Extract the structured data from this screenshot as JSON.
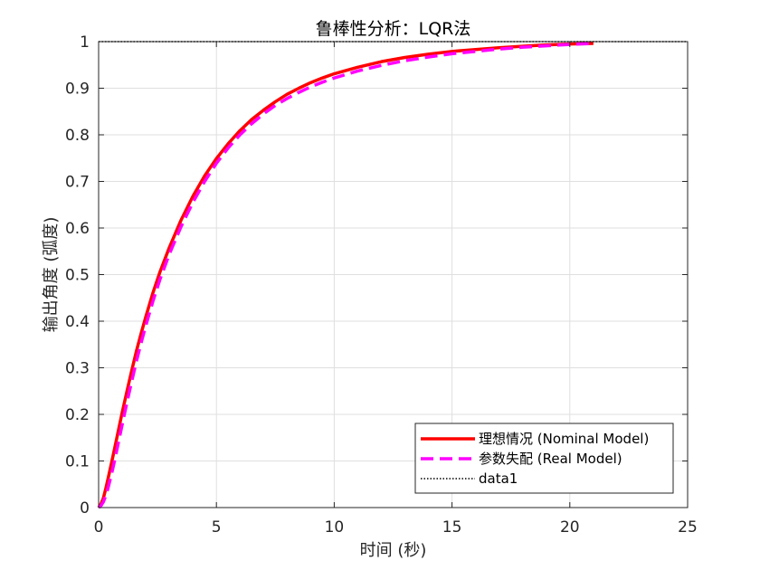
{
  "chart_data": {
    "type": "line",
    "title": "鲁棒性分析：LQR法",
    "xlabel": "时间 (秒)",
    "ylabel": "输出角度 (弧度)",
    "xlim": [
      0,
      25
    ],
    "ylim": [
      0,
      1
    ],
    "xticks": [
      0,
      5,
      10,
      15,
      20,
      25
    ],
    "yticks": [
      0,
      0.1,
      0.2,
      0.3,
      0.4,
      0.5,
      0.6,
      0.7,
      0.8,
      0.9,
      1
    ],
    "xtick_labels": [
      "0",
      "5",
      "10",
      "15",
      "20",
      "25"
    ],
    "ytick_labels": [
      "0",
      "0.1",
      "0.2",
      "0.3",
      "0.4",
      "0.5",
      "0.6",
      "0.7",
      "0.8",
      "0.9",
      "1"
    ],
    "grid": true,
    "legend_position": "bottom-right",
    "series": [
      {
        "name": "理想情况 (Nominal Model)",
        "color": "#ff0000",
        "style": "solid",
        "x": [
          0,
          0.1,
          0.2,
          0.3,
          0.4,
          0.5,
          0.6,
          0.7,
          0.8,
          1,
          1.2,
          1.4,
          1.6,
          1.8,
          2,
          2.3,
          2.6,
          3,
          3.5,
          4,
          4.5,
          5,
          5.5,
          6,
          6.5,
          7,
          7.5,
          8,
          8.5,
          9,
          9.5,
          10,
          11,
          12,
          13,
          14,
          15,
          16,
          17,
          18,
          19,
          20,
          21
        ],
        "y": [
          0,
          0.008,
          0.02,
          0.04,
          0.062,
          0.085,
          0.108,
          0.132,
          0.156,
          0.204,
          0.249,
          0.293,
          0.335,
          0.373,
          0.409,
          0.46,
          0.505,
          0.558,
          0.617,
          0.668,
          0.712,
          0.749,
          0.781,
          0.809,
          0.833,
          0.853,
          0.871,
          0.887,
          0.9,
          0.912,
          0.922,
          0.931,
          0.945,
          0.957,
          0.966,
          0.973,
          0.979,
          0.983,
          0.987,
          0.99,
          0.993,
          0.995,
          0.996
        ]
      },
      {
        "name": "参数失配 (Real Model)",
        "color": "#ff00ff",
        "style": "dashed",
        "x": [
          0,
          0.1,
          0.2,
          0.3,
          0.4,
          0.5,
          0.6,
          0.7,
          0.8,
          1,
          1.2,
          1.4,
          1.6,
          1.8,
          2,
          2.3,
          2.6,
          3,
          3.5,
          4,
          4.5,
          5,
          5.5,
          6,
          6.5,
          7,
          7.5,
          8,
          8.5,
          9,
          9.5,
          10,
          11,
          12,
          13,
          14,
          15,
          16,
          17,
          18,
          19,
          20,
          21
        ],
        "y": [
          0,
          0.004,
          0.012,
          0.025,
          0.042,
          0.062,
          0.083,
          0.106,
          0.13,
          0.178,
          0.225,
          0.27,
          0.313,
          0.353,
          0.39,
          0.442,
          0.489,
          0.544,
          0.603,
          0.655,
          0.7,
          0.739,
          0.772,
          0.8,
          0.824,
          0.845,
          0.863,
          0.878,
          0.891,
          0.903,
          0.913,
          0.922,
          0.937,
          0.949,
          0.959,
          0.967,
          0.974,
          0.979,
          0.984,
          0.988,
          0.991,
          0.994,
          0.996
        ]
      },
      {
        "name": "data1",
        "color": "#000000",
        "style": "dotted",
        "x": [
          0,
          25
        ],
        "y": [
          1,
          1
        ]
      }
    ]
  }
}
